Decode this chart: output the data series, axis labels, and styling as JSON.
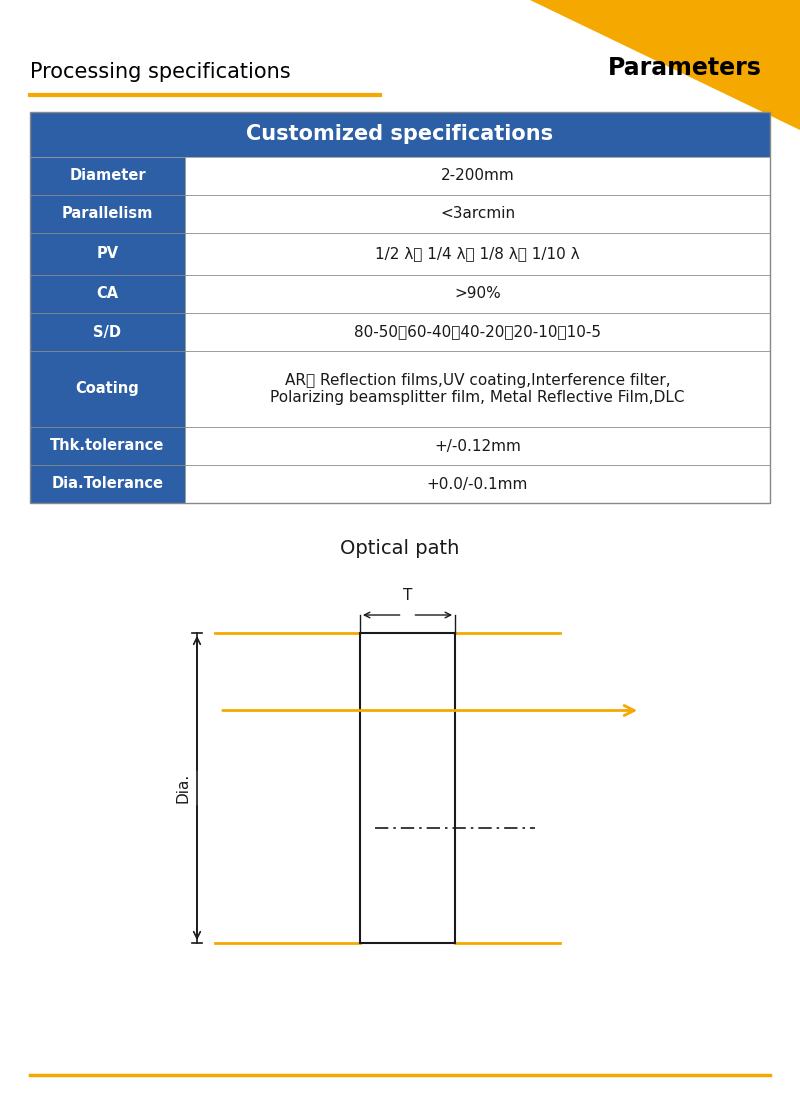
{
  "bg_color": "#ffffff",
  "header_bg": "#2d5fa6",
  "header_text_color": "#ffffff",
  "row_label_bg": "#2d5fa6",
  "row_label_text_color": "#ffffff",
  "row_value_bg": "#ffffff",
  "row_value_text_color": "#1a1a1a",
  "border_color": "#888888",
  "gold_color": "#f5a800",
  "title_left": "Processing specifications",
  "title_right": "Parameters",
  "table_title": "Customized specifications",
  "rows": [
    [
      "Diameter",
      "2-200mm"
    ],
    [
      "Parallelism",
      "<3arcmin"
    ],
    [
      "PV",
      "1/2 λ、 1/4 λ、 1/8 λ、 1/10 λ"
    ],
    [
      "CA",
      ">90%"
    ],
    [
      "S/D",
      "80-50、60-40、40-20、20-10、10-5"
    ],
    [
      "Coating",
      "AR、 Reflection films,UV coating,Interference filter,\nPolarizing beamsplitter film, Metal Reflective Film,DLC"
    ],
    [
      "Thk.tolerance",
      "+/-0.12mm"
    ],
    [
      "Dia.Tolerance",
      "+0.0/-0.1mm"
    ]
  ],
  "optical_path_title": "Optical path",
  "diagram_gold": "#f5a800",
  "diagram_black": "#1a1a1a",
  "footer_line_color": "#f5a800"
}
